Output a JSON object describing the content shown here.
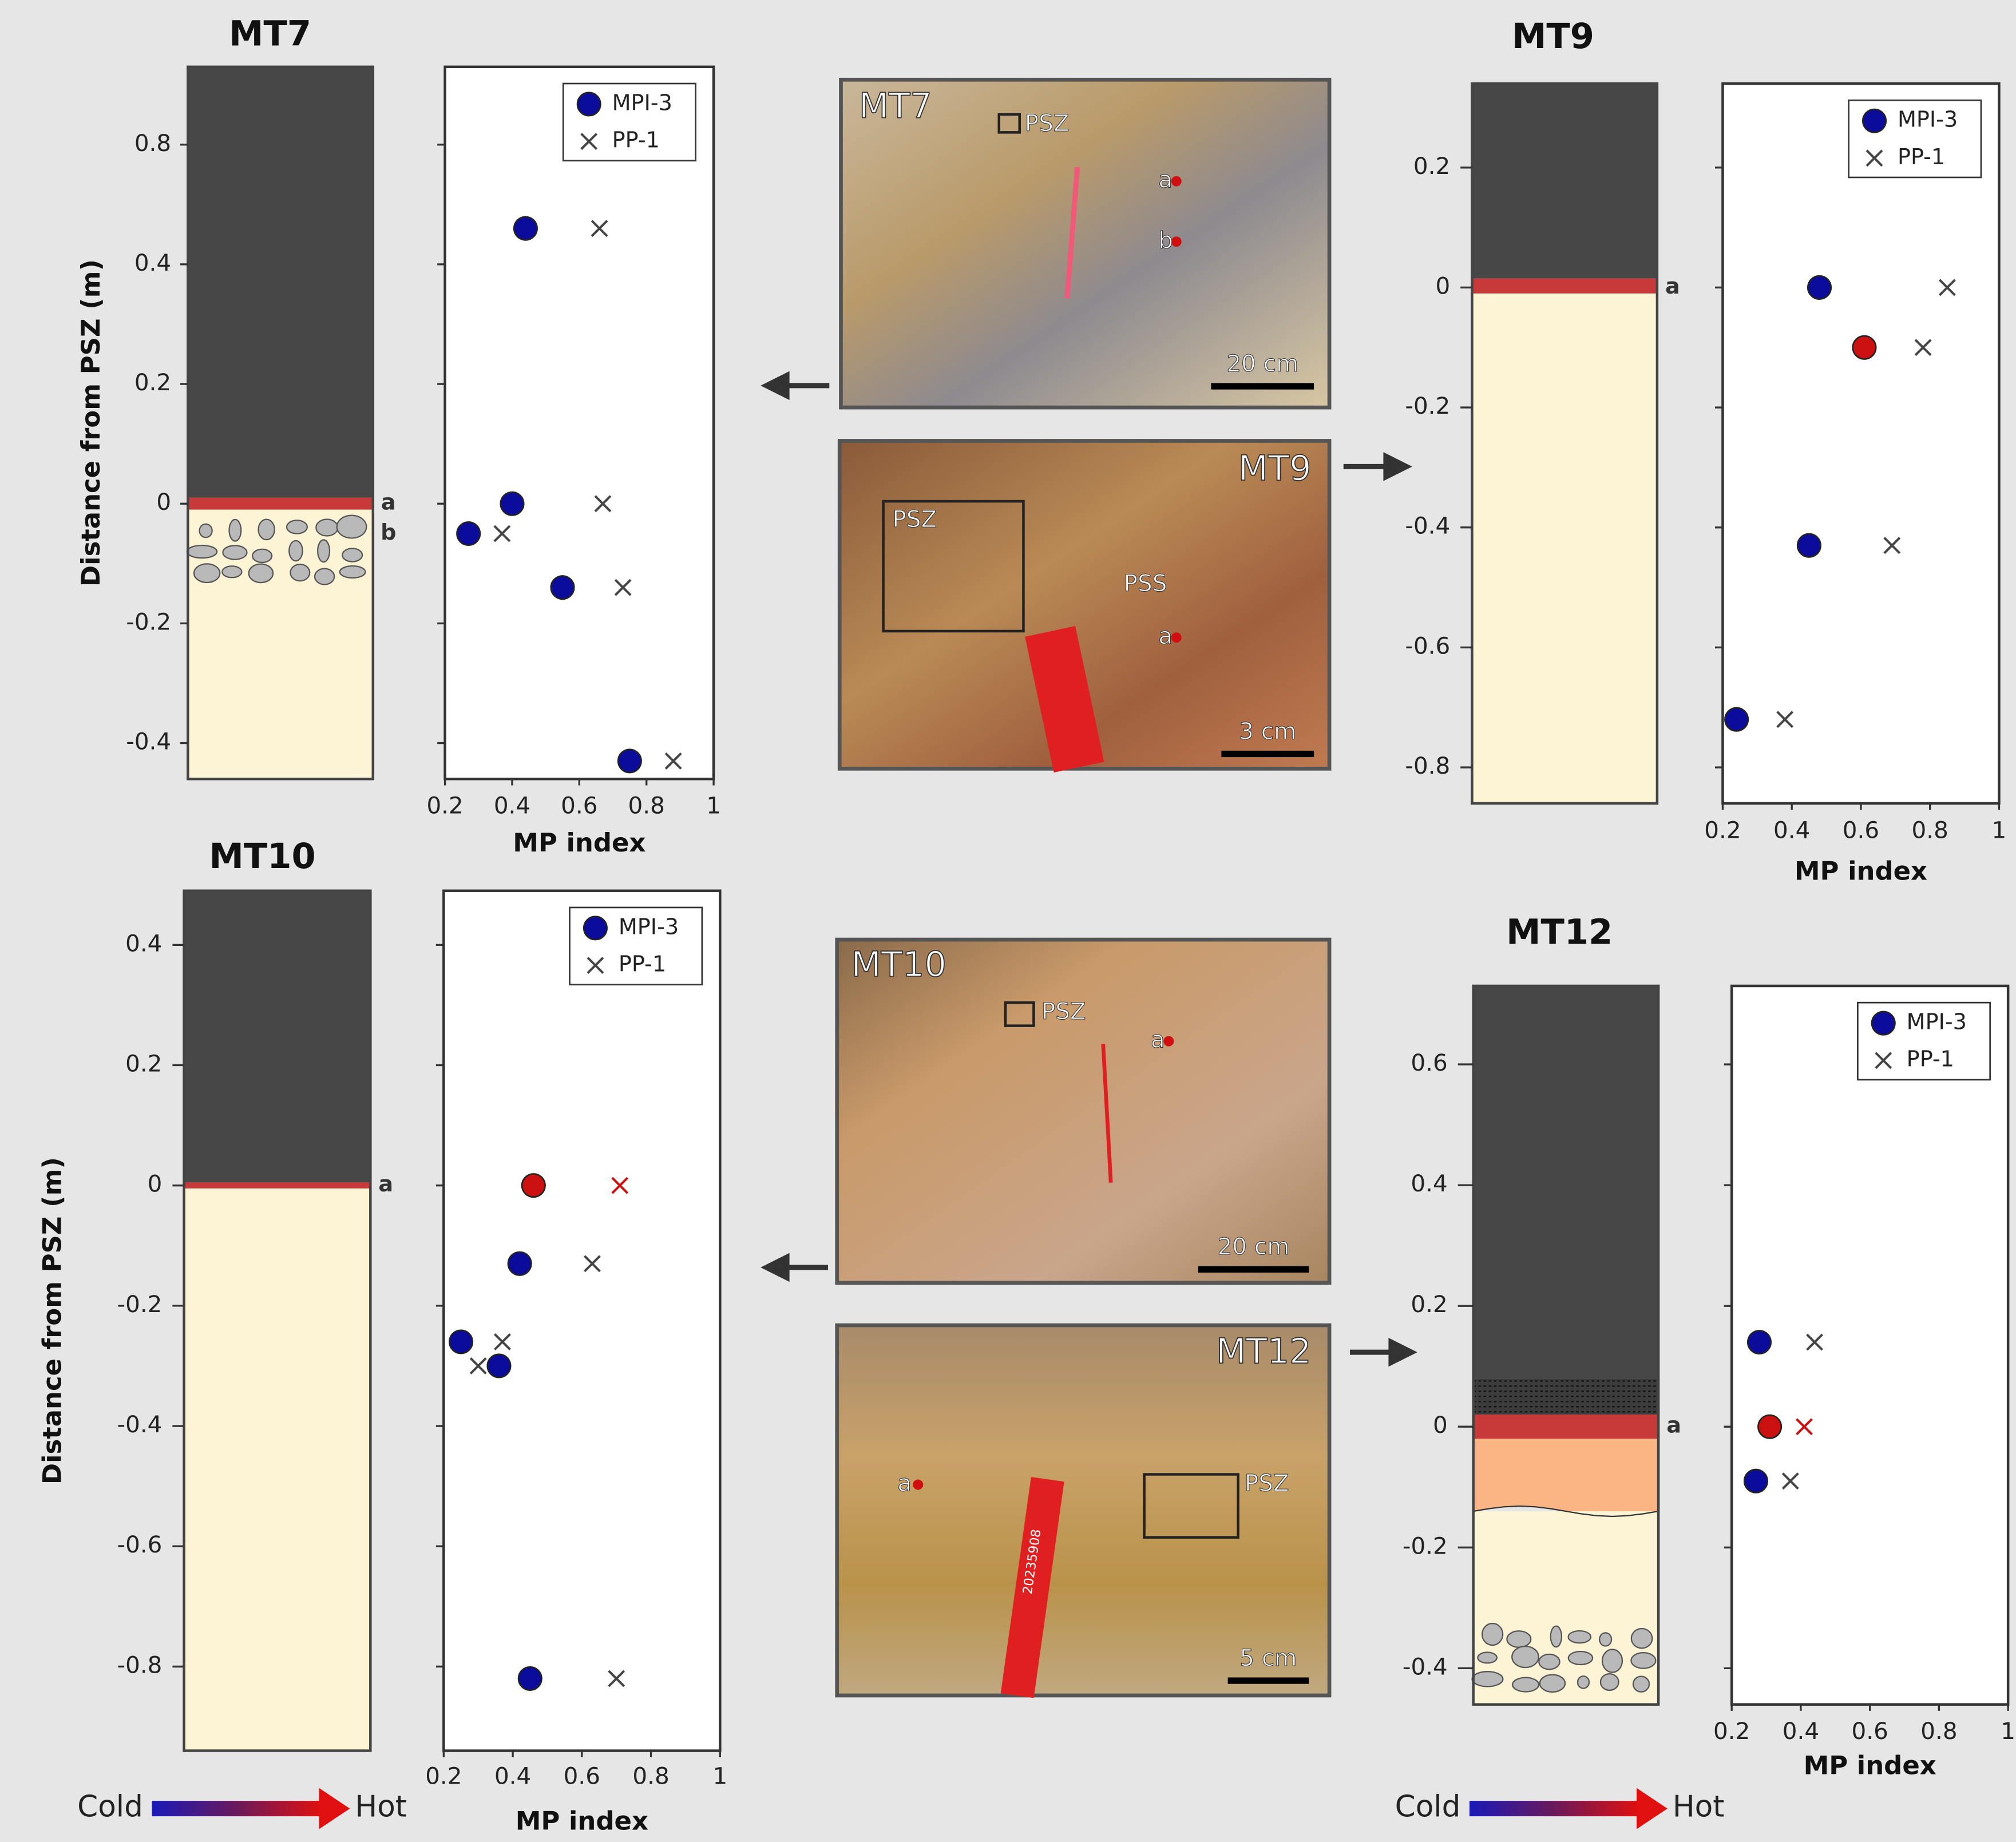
{
  "chart_data": [
    {
      "type": "scatter",
      "title": "MT7",
      "ylabel": "Distance from PSZ (m)",
      "xlabel": "MP index",
      "xlim": [
        0.2,
        1.0
      ],
      "xticks": [
        0.2,
        0.4,
        0.6,
        0.8,
        1.0
      ],
      "ylim": [
        -0.46,
        1.06
      ],
      "yticks": [
        0.8,
        0.4,
        0.2,
        0,
        -0.2,
        -0.4
      ],
      "legend": "upper right",
      "layer_boundaries": [
        0.01,
        -0.01
      ],
      "layer_colors": [
        "#474747",
        "#c83a3a",
        "#fdf3d5"
      ],
      "clasts": true,
      "sample_labels": [
        "a",
        "b"
      ],
      "sample_depths": [
        0,
        -0.05
      ],
      "series": [
        {
          "name": "MPI-3",
          "marker": "circle",
          "color": "#0b0b9c",
          "x": [
            0.44,
            0.4,
            0.27,
            0.55,
            0.75
          ],
          "values": [
            0.52,
            0,
            -0.05,
            -0.14,
            -0.43
          ],
          "point_colors": [
            "#0b0b9c",
            "#0b0b9c",
            "#0b0b9c",
            "#0b0b9c",
            "#0b0b9c"
          ]
        },
        {
          "name": "PP-1",
          "marker": "cross",
          "color": "#444444",
          "x": [
            0.66,
            0.67,
            0.37,
            0.73,
            0.88
          ],
          "values": [
            0.52,
            0,
            -0.05,
            -0.14,
            -0.43
          ],
          "point_colors": [
            "#444444",
            "#444444",
            "#444444",
            "#444444",
            "#444444"
          ]
        }
      ]
    },
    {
      "type": "scatter",
      "title": "MT9",
      "xlabel": "MP index",
      "xlim": [
        0.2,
        1.0
      ],
      "xticks": [
        0.2,
        0.4,
        0.6,
        0.8,
        1.0
      ],
      "ylim": [
        -0.86,
        0.34
      ],
      "yticks": [
        0.2,
        0,
        -0.2,
        -0.4,
        -0.6,
        -0.8
      ],
      "legend": "upper right",
      "layer_boundaries": [
        0.015,
        -0.01
      ],
      "layer_colors": [
        "#474747",
        "#c83a3a",
        "#fdf3d5"
      ],
      "clasts": false,
      "sample_labels": [
        "a"
      ],
      "sample_depths": [
        0
      ],
      "series": [
        {
          "name": "MPI-3",
          "marker": "circle",
          "color": "#0b0b9c",
          "x": [
            0.48,
            0.61,
            0.45,
            0.24
          ],
          "values": [
            0,
            -0.1,
            -0.43,
            -0.72
          ],
          "point_colors": [
            "#0b0b9c",
            "#cc1111",
            "#0b0b9c",
            "#0b0b9c"
          ]
        },
        {
          "name": "PP-1",
          "marker": "cross",
          "color": "#444444",
          "x": [
            0.85,
            0.78,
            0.69,
            0.38
          ],
          "values": [
            0,
            -0.1,
            -0.43,
            -0.72
          ],
          "point_colors": [
            "#444444",
            "#444444",
            "#444444",
            "#444444"
          ]
        }
      ]
    },
    {
      "type": "scatter",
      "title": "MT10",
      "ylabel": "Distance from PSZ (m)",
      "xlabel": "MP index",
      "xlim": [
        0.2,
        1.0
      ],
      "xticks": [
        0.2,
        0.4,
        0.6,
        0.8,
        1.0
      ],
      "ylim": [
        -0.94,
        0.49
      ],
      "yticks": [
        0.4,
        0.2,
        0,
        -0.2,
        -0.4,
        -0.6,
        -0.8
      ],
      "legend": "upper right",
      "layer_boundaries": [
        0.005,
        -0.005
      ],
      "layer_colors": [
        "#474747",
        "#c83a3a",
        "#fdf3d5"
      ],
      "clasts": false,
      "sample_labels": [
        "a"
      ],
      "sample_depths": [
        0
      ],
      "series": [
        {
          "name": "MPI-3",
          "marker": "circle",
          "color": "#0b0b9c",
          "x": [
            0.46,
            0.42,
            0.25,
            0.36,
            0.45
          ],
          "values": [
            0,
            -0.13,
            -0.26,
            -0.3,
            -0.82
          ],
          "point_colors": [
            "#cc1111",
            "#0b0b9c",
            "#0b0b9c",
            "#0b0b9c",
            "#0b0b9c"
          ]
        },
        {
          "name": "PP-1",
          "marker": "cross",
          "color": "#444444",
          "x": [
            0.71,
            0.63,
            0.37,
            0.3,
            0.7
          ],
          "values": [
            0,
            -0.13,
            -0.26,
            -0.3,
            -0.82
          ],
          "point_colors": [
            "#cc1111",
            "#444444",
            "#444444",
            "#444444",
            "#444444"
          ]
        }
      ]
    },
    {
      "type": "scatter",
      "title": "MT12",
      "xlabel": "MP index",
      "xlim": [
        0.2,
        1.0
      ],
      "xticks": [
        0.2,
        0.4,
        0.6,
        0.8,
        1.0
      ],
      "ylim": [
        -0.46,
        0.73
      ],
      "yticks": [
        0.6,
        0.4,
        0.2,
        0,
        -0.2,
        -0.4
      ],
      "legend": "upper right",
      "layer_boundaries": [
        0.08,
        0.02,
        -0.02,
        -0.14
      ],
      "layer_colors": [
        "#474747",
        "#3c3c3c",
        "#c83a3a",
        "#fbb584",
        "#fdf3d5"
      ],
      "clasts": true,
      "hatched_layer": 1,
      "wavy_boundary": 3,
      "sample_labels": [
        "a"
      ],
      "sample_depths": [
        0
      ],
      "series": [
        {
          "name": "MPI-3",
          "marker": "circle",
          "color": "#0b0b9c",
          "x": [
            0.28,
            0.31,
            0.27
          ],
          "values": [
            0.14,
            0,
            -0.09
          ],
          "point_colors": [
            "#0b0b9c",
            "#cc1111",
            "#0b0b9c"
          ]
        },
        {
          "name": "PP-1",
          "marker": "cross",
          "color": "#444444",
          "x": [
            0.44,
            0.41,
            0.37
          ],
          "values": [
            0.14,
            0,
            -0.09
          ],
          "point_colors": [
            "#444444",
            "#cc1111",
            "#444444"
          ]
        }
      ]
    }
  ],
  "photos": [
    {
      "title": "MT7",
      "labels": [
        "PSZ",
        "a",
        "b"
      ],
      "scale_bar": "20 cm"
    },
    {
      "title": "MT9",
      "labels": [
        "PSZ",
        "PSS",
        "a"
      ],
      "scale_bar": "3 cm"
    },
    {
      "title": "MT10",
      "labels": [
        "PSZ",
        "a"
      ],
      "scale_bar": "20 cm"
    },
    {
      "title": "MT12",
      "labels": [
        "a",
        "PSZ"
      ],
      "scale_bar": "5 cm",
      "tag": "20235908"
    }
  ],
  "temperature_scale": {
    "cold": "Cold",
    "hot": "Hot"
  }
}
